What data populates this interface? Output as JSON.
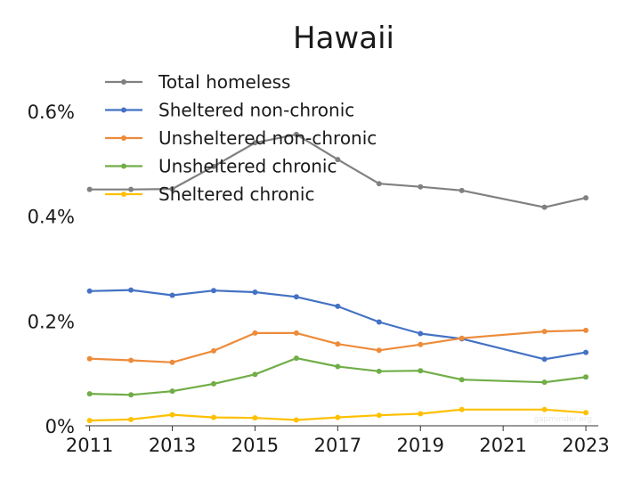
{
  "chart_data": {
    "type": "line",
    "title": "Hawaii",
    "xlabel": "",
    "ylabel": "",
    "x": [
      2011,
      2012,
      2013,
      2014,
      2015,
      2016,
      2017,
      2018,
      2019,
      2020,
      2022,
      2023
    ],
    "x_ticks": [
      "2011",
      "2013",
      "2015",
      "2017",
      "2019",
      "2021",
      "2023"
    ],
    "x_tick_values": [
      2011,
      2013,
      2015,
      2017,
      2019,
      2021,
      2023
    ],
    "xlim": [
      2010.9,
      2023.3
    ],
    "y_ticks": [
      "0%",
      "0.2%",
      "0.4%",
      "0.6%"
    ],
    "y_tick_values": [
      0,
      0.2,
      0.4,
      0.6
    ],
    "ylim": [
      0,
      0.6
    ],
    "grid": false,
    "legend_position": "top-left",
    "series": [
      {
        "name": "Total homeless",
        "color": "#808080",
        "values": [
          0.451,
          0.451,
          0.452,
          0.495,
          0.54,
          0.556,
          0.508,
          0.462,
          0.456,
          0.449,
          0.417,
          0.435
        ]
      },
      {
        "name": "Sheltered non-chronic",
        "color": "#4472c4",
        "values": [
          0.257,
          0.259,
          0.249,
          0.258,
          0.255,
          0.246,
          0.228,
          0.198,
          0.176,
          0.166,
          0.127,
          0.14
        ]
      },
      {
        "name": "Unsheltered non-chronic",
        "color": "#ed8b3a",
        "values": [
          0.128,
          0.125,
          0.121,
          0.143,
          0.177,
          0.177,
          0.156,
          0.144,
          0.155,
          0.167,
          0.18,
          0.182
        ]
      },
      {
        "name": "Unsheltered chronic",
        "color": "#70ad47",
        "values": [
          0.061,
          0.059,
          0.066,
          0.08,
          0.098,
          0.129,
          0.113,
          0.104,
          0.105,
          0.088,
          0.083,
          0.093
        ]
      },
      {
        "name": "Sheltered chronic",
        "color": "#ffc000",
        "values": [
          0.01,
          0.012,
          0.021,
          0.016,
          0.015,
          0.011,
          0.016,
          0.02,
          0.023,
          0.031,
          0.031,
          0.025
        ]
      }
    ],
    "watermark": "gapminder.org"
  }
}
